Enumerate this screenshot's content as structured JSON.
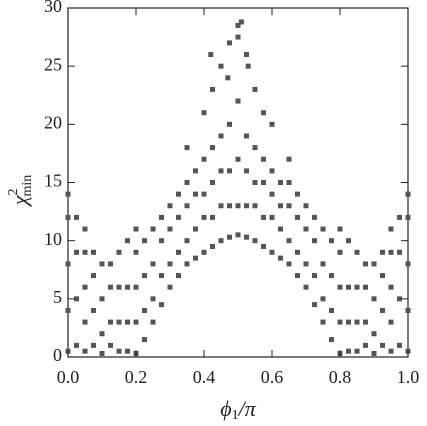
{
  "chart_data": {
    "type": "scatter",
    "xlabel": [
      "ϕ",
      "1",
      "/π"
    ],
    "ylabel": [
      "χ",
      "2",
      "min"
    ],
    "xlim": [
      0,
      1
    ],
    "ylim": [
      0,
      30
    ],
    "xticks": [
      {
        "value": 0,
        "label": "0.0"
      },
      0.2,
      0.4,
      0.6,
      0.8,
      {
        "value": 1,
        "label": "1.0"
      }
    ],
    "yticks": [
      0,
      5,
      10,
      15,
      20,
      25,
      30
    ],
    "color": "#555555",
    "x": [
      0,
      0,
      0,
      0,
      0,
      0.025,
      0.025,
      0.025,
      0.025,
      0.05,
      0.05,
      0.05,
      0.05,
      0.05,
      0.075,
      0.075,
      0.075,
      0.075,
      0.1,
      0.1,
      0.1,
      0.1,
      0.125,
      0.125,
      0.125,
      0.125,
      0.15,
      0.15,
      0.15,
      0.15,
      0.175,
      0.175,
      0.175,
      0.175,
      0.2,
      0.2,
      0.2,
      0.2,
      0.2,
      0.225,
      0.225,
      0.225,
      0.225,
      0.25,
      0.25,
      0.25,
      0.25,
      0.275,
      0.275,
      0.275,
      0.275,
      0.3,
      0.3,
      0.3,
      0.3,
      0.325,
      0.325,
      0.325,
      0.325,
      0.35,
      0.35,
      0.35,
      0.35,
      0.35,
      0.375,
      0.375,
      0.375,
      0.375,
      0.4,
      0.4,
      0.4,
      0.4,
      0.4,
      0.425,
      0.425,
      0.425,
      0.425,
      0.425,
      0.45,
      0.45,
      0.45,
      0.45,
      0.45,
      0.475,
      0.475,
      0.475,
      0.475,
      0.475,
      0.5,
      0.5,
      0.5,
      0.5,
      0.5,
      0.525,
      0.525,
      0.525,
      0.525,
      0.525,
      0.55,
      0.55,
      0.55,
      0.55,
      0.55,
      0.575,
      0.575,
      0.575,
      0.575,
      0.575,
      0.6,
      0.6,
      0.6,
      0.6,
      0.6,
      0.625,
      0.625,
      0.625,
      0.625,
      0.65,
      0.65,
      0.65,
      0.65,
      0.65,
      0.675,
      0.675,
      0.675,
      0.675,
      0.7,
      0.7,
      0.7,
      0.7,
      0.725,
      0.725,
      0.725,
      0.725,
      0.75,
      0.75,
      0.75,
      0.75,
      0.775,
      0.775,
      0.775,
      0.775,
      0.8,
      0.8,
      0.8,
      0.8,
      0.8,
      0.825,
      0.825,
      0.825,
      0.825,
      0.85,
      0.85,
      0.85,
      0.85,
      0.875,
      0.875,
      0.875,
      0.875,
      0.9,
      0.9,
      0.9,
      0.9,
      0.925,
      0.925,
      0.925,
      0.925,
      0.95,
      0.95,
      0.95,
      0.95,
      0.95,
      0.975,
      0.975,
      0.975,
      0.975,
      1,
      1,
      1,
      1,
      1,
      0.42,
      0.47,
      0.53,
      0.5,
      0.51
    ],
    "y": [
      0.5,
      4,
      8,
      12,
      14,
      1,
      5,
      9,
      12,
      0.5,
      3,
      6,
      9,
      11,
      1,
      4,
      7,
      9,
      0.3,
      2,
      5,
      8,
      1,
      3,
      6,
      8,
      0.5,
      3,
      6,
      9,
      0.5,
      3,
      6,
      10,
      0.3,
      3,
      6,
      9,
      11,
      1.5,
      4,
      7,
      10,
      3,
      5,
      8,
      11,
      4.5,
      7,
      10,
      12,
      6,
      8,
      11,
      13,
      7,
      9,
      12,
      14,
      8,
      10,
      13,
      15,
      18,
      8.5,
      11,
      14,
      16,
      9,
      12,
      14,
      17,
      21,
      9.5,
      12,
      15,
      18,
      23,
      10,
      13,
      16,
      19,
      25,
      10.3,
      13,
      16,
      20,
      27,
      10.5,
      13,
      17,
      22,
      28.5,
      10.3,
      13,
      16,
      19,
      26,
      10,
      13,
      15,
      18,
      23,
      9.5,
      12,
      15,
      17,
      21,
      9,
      12,
      14,
      16,
      20,
      8.5,
      11,
      13,
      15,
      8,
      10,
      13,
      15,
      17,
      7,
      9,
      12,
      14,
      6,
      8,
      11,
      13,
      4.5,
      7,
      10,
      12,
      3,
      5,
      8,
      11,
      1.5,
      4,
      7,
      10,
      0.3,
      3,
      6,
      9,
      11,
      0.5,
      3,
      6,
      10,
      0.5,
      3,
      6,
      9,
      1,
      3,
      6,
      8,
      0.3,
      2,
      5,
      8,
      1,
      4,
      7,
      9,
      0.5,
      3,
      6,
      9,
      11,
      1,
      5,
      9,
      12,
      0.5,
      4,
      8,
      12,
      14,
      26,
      24,
      25,
      27.5,
      28.8
    ]
  }
}
